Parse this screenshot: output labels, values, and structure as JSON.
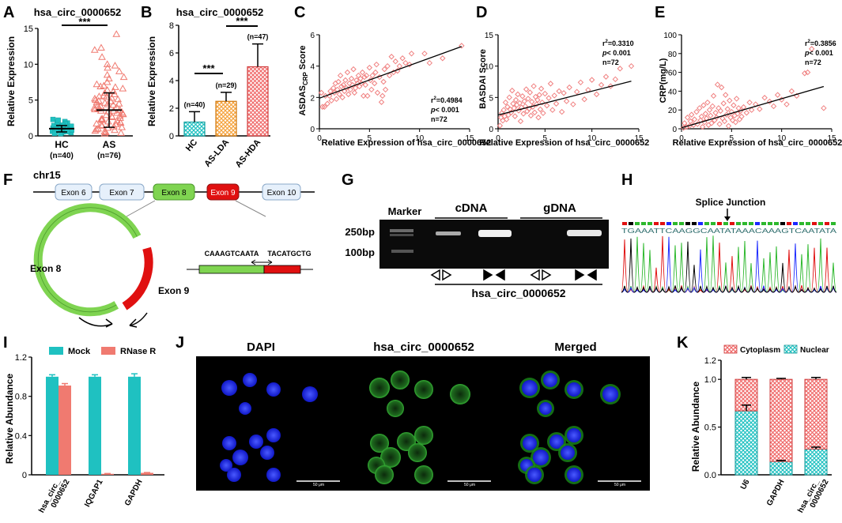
{
  "panels": {
    "A": "A",
    "B": "B",
    "C": "C",
    "D": "D",
    "E": "E",
    "F": "F",
    "G": "G",
    "H": "H",
    "I": "I",
    "J": "J",
    "K": "K"
  },
  "colors": {
    "teal": "#1fc1c1",
    "salmon": "#f07a70",
    "pink_point": "#f08080",
    "orange": "#f5a23c",
    "green_exon": "#7fd451",
    "red_exon": "#e01010",
    "blue_dapi": "#1a28ff",
    "green_fitc": "#2db82d"
  },
  "panel_a": {
    "title": "hsa_circ_0000652",
    "ylabel": "Relative Expression",
    "sig": "***",
    "groups": [
      "HC",
      "AS"
    ],
    "ns": [
      "(n=40)",
      "(n=76)"
    ]
  },
  "panel_b": {
    "title": "hsa_circ_0000652",
    "ylabel": "Relative Expression",
    "sig1": "***",
    "sig2": "***",
    "groups": [
      "HC",
      "AS-LDA",
      "AS-HDA"
    ],
    "ns": [
      "(n=40)",
      "(n=29)",
      "(n=47)"
    ]
  },
  "panel_c": {
    "ylabel_main": "ASDAS",
    "ylabel_sub": "CRP",
    "ylabel_end": " Score",
    "xlabel": "Relative Expression of hsa_circ_0000652",
    "r2_prefix": "r",
    "r2_sup": "2",
    "r2_value": "=0.4984",
    "p_prefix": "p",
    "p_value": "< 0.001",
    "n": "n=72"
  },
  "panel_d": {
    "ylabel": "BASDAI Score",
    "xlabel": "Relative Expression of  hsa_circ_0000652",
    "r2_prefix": "r",
    "r2_sup": "2",
    "r2_value": "=0.3310",
    "p_prefix": "p",
    "p_value": "< 0.001",
    "n": "n=72"
  },
  "panel_e": {
    "ylabel": "CRP(mg/L)",
    "xlabel": "Relative Expression of hsa_circ_0000652",
    "r2_prefix": "r",
    "r2_sup": "2",
    "r2_value": "=0.3856",
    "p_prefix": "p",
    "p_value": "< 0.001",
    "n": "n=72"
  },
  "panel_f": {
    "chrom": "chr15",
    "exons": [
      "Exon 6",
      "Exon 7",
      "Exon 8",
      "Exon 9",
      "Exon 10"
    ],
    "circle_exon_left": "Exon 8",
    "circle_exon_right": "Exon 9",
    "junction_left_seq": "CAAAGTCAATA",
    "junction_right_seq": "TACATGCTG"
  },
  "panel_g": {
    "marker": "Marker",
    "cdna": "cDNA",
    "gdna": "gDNA",
    "bp250": "250bp",
    "bp100": "100bp",
    "gene": "hsa_circ_0000652"
  },
  "panel_h": {
    "label": "Splice Junction",
    "sequence": "TGAAATTCAAGGCAATATAAACAAAGTCAATATA"
  },
  "panel_i": {
    "ylabel": "Relative Abundance",
    "legend": [
      "Mock",
      "RNase R"
    ],
    "xlabels": [
      "hsa_circ_\n0000652",
      "IQGAP1",
      "GAPDH"
    ]
  },
  "panel_j": {
    "headers": [
      "DAPI",
      "hsa_circ_0000652",
      "Merged"
    ],
    "scale": "50 μm"
  },
  "panel_k": {
    "ylabel": "Relative Abundance",
    "legend": [
      "Cytoplasm",
      "Nuclear"
    ],
    "xlabels": [
      "U6",
      "GAPDH",
      "hsa_circ_\n0000652"
    ]
  },
  "chart_data": [
    {
      "type": "scatter",
      "panel": "A",
      "title": "hsa_circ_0000652",
      "xlabel": "",
      "ylabel": "Relative Expression",
      "ylim": [
        0,
        15
      ],
      "yticks": [
        0,
        5,
        10,
        15
      ],
      "categories": [
        "HC",
        "AS"
      ],
      "series": [
        {
          "name": "HC",
          "mean": 1.0,
          "sd": 0.45,
          "points": [
            0.4,
            0.55,
            0.7,
            0.8,
            0.9,
            1.0,
            1.1,
            1.2,
            1.3,
            1.4,
            1.6,
            1.8,
            2.0,
            2.3,
            0.6,
            0.75,
            0.95,
            1.15,
            1.05,
            0.85,
            0.5,
            0.65,
            1.25,
            1.35,
            1.45,
            0.3,
            0.45,
            0.9,
            1.0,
            1.2,
            1.7,
            1.9,
            0.7,
            0.8,
            1.1,
            0.95,
            1.5,
            2.2,
            0.35,
            0.6
          ]
        },
        {
          "name": "AS",
          "mean": 3.6,
          "sd": 2.4,
          "points": [
            0.3,
            0.6,
            0.9,
            1.2,
            1.5,
            1.8,
            2.0,
            2.3,
            2.6,
            2.9,
            3.2,
            3.5,
            3.8,
            4.1,
            4.4,
            4.7,
            5.0,
            5.4,
            5.8,
            6.2,
            6.6,
            7.0,
            7.5,
            8.0,
            8.5,
            9.0,
            9.5,
            10.0,
            11.0,
            12.3,
            14.2,
            1.0,
            1.4,
            2.1,
            2.8,
            3.0,
            3.3,
            3.6,
            4.0,
            4.3,
            4.8,
            5.2,
            5.6,
            6.0,
            6.9,
            0.5,
            0.8,
            1.6,
            2.4,
            3.1,
            3.9,
            4.6,
            5.3,
            6.4,
            7.2,
            8.2,
            1.1,
            1.9,
            2.7,
            3.4,
            4.2,
            5.1,
            0.4,
            2.2,
            3.7,
            4.9,
            6.8,
            9.8,
            1.3,
            2.5,
            3.5,
            4.5,
            5.5,
            0.7,
            1.7,
            12.0
          ]
        }
      ],
      "sig": "***"
    },
    {
      "type": "bar",
      "panel": "B",
      "title": "hsa_circ_0000652",
      "xlabel": "",
      "ylabel": "Relative Expression",
      "ylim": [
        0,
        8
      ],
      "yticks": [
        0,
        2,
        4,
        6,
        8
      ],
      "categories": [
        "HC",
        "AS-LDA",
        "AS-HDA"
      ],
      "values": [
        1.0,
        2.5,
        5.0
      ],
      "errors": [
        0.75,
        0.65,
        1.65
      ],
      "ns": [
        "(n=40)",
        "(n=29)",
        "(n=47)"
      ]
    },
    {
      "type": "scatter",
      "panel": "C",
      "xlabel": "Relative Expression of hsa_circ_0000652",
      "ylabel": "ASDASCRP Score",
      "xlim": [
        0,
        15
      ],
      "ylim": [
        0,
        6
      ],
      "xticks": [
        0,
        5,
        10,
        15
      ],
      "yticks": [
        0,
        2,
        4,
        6
      ],
      "fit": [
        [
          0,
          1.95
        ],
        [
          14.2,
          5.25
        ]
      ],
      "r2": 0.4984,
      "n": 72,
      "points": [
        [
          0.2,
          2.3
        ],
        [
          0.3,
          1.4
        ],
        [
          0.5,
          1.4
        ],
        [
          0.6,
          2.1
        ],
        [
          0.8,
          1.6
        ],
        [
          1,
          2.1
        ],
        [
          1.1,
          2.4
        ],
        [
          1.2,
          1.8
        ],
        [
          1.4,
          2.6
        ],
        [
          1.5,
          2.3
        ],
        [
          1.6,
          2.9
        ],
        [
          1.7,
          1.9
        ],
        [
          1.8,
          2.5
        ],
        [
          1.9,
          3.0
        ],
        [
          2.0,
          2.2
        ],
        [
          2.1,
          3.4
        ],
        [
          2.2,
          2.7
        ],
        [
          2.3,
          2.0
        ],
        [
          2.4,
          2.8
        ],
        [
          2.5,
          2.4
        ],
        [
          2.6,
          3.1
        ],
        [
          2.7,
          2.6
        ],
        [
          2.8,
          3.6
        ],
        [
          2.9,
          2.2
        ],
        [
          3.0,
          2.9
        ],
        [
          3.1,
          2.5
        ],
        [
          3.2,
          3.2
        ],
        [
          3.3,
          2.8
        ],
        [
          3.4,
          3.8
        ],
        [
          3.5,
          2.3
        ],
        [
          3.6,
          2.6
        ],
        [
          3.7,
          3.1
        ],
        [
          3.8,
          2.9
        ],
        [
          3.9,
          3.4
        ],
        [
          4.0,
          2.7
        ],
        [
          4.1,
          3.2
        ],
        [
          4.2,
          2.9
        ],
        [
          4.3,
          3.6
        ],
        [
          4.4,
          2.1
        ],
        [
          4.5,
          3.3
        ],
        [
          4.6,
          2.8
        ],
        [
          4.7,
          3.4
        ],
        [
          4.8,
          2.1
        ],
        [
          5.0,
          3.9
        ],
        [
          5.1,
          3.1
        ],
        [
          5.2,
          2.5
        ],
        [
          5.3,
          3.4
        ],
        [
          5.5,
          2.9
        ],
        [
          5.6,
          3.6
        ],
        [
          5.7,
          4.1
        ],
        [
          5.8,
          2.3
        ],
        [
          6.0,
          3.3
        ],
        [
          6.2,
          1.7
        ],
        [
          6.3,
          2.1
        ],
        [
          6.4,
          3.0
        ],
        [
          6.5,
          3.8
        ],
        [
          6.6,
          2.5
        ],
        [
          6.8,
          4.0
        ],
        [
          7.0,
          3.4
        ],
        [
          7.2,
          4.6
        ],
        [
          7.4,
          3.6
        ],
        [
          7.6,
          4.3
        ],
        [
          7.8,
          3.7
        ],
        [
          8.0,
          4.0
        ],
        [
          8.3,
          4.5
        ],
        [
          8.6,
          4.2
        ],
        [
          9.0,
          4.1
        ],
        [
          9.2,
          4.8
        ],
        [
          10.5,
          4.8
        ],
        [
          11.0,
          4.2
        ],
        [
          12.3,
          4.5
        ],
        [
          14.2,
          5.3
        ]
      ]
    },
    {
      "type": "scatter",
      "panel": "D",
      "xlabel": "Relative Expression of  hsa_circ_0000652",
      "ylabel": "BASDAI Score",
      "xlim": [
        0,
        15
      ],
      "ylim": [
        0,
        15
      ],
      "xticks": [
        0,
        5,
        10,
        15
      ],
      "yticks": [
        0,
        5,
        10,
        15
      ],
      "fit": [
        [
          0,
          2.2
        ],
        [
          14.2,
          7.6
        ]
      ],
      "r2": 0.331,
      "n": 72,
      "points": [
        [
          0.2,
          0.5
        ],
        [
          0.3,
          1.8
        ],
        [
          0.4,
          2.5
        ],
        [
          0.5,
          1.3
        ],
        [
          0.6,
          3.0
        ],
        [
          0.7,
          2.0
        ],
        [
          0.8,
          4.2
        ],
        [
          0.9,
          1.5
        ],
        [
          1.0,
          3.5
        ],
        [
          1.1,
          2.2
        ],
        [
          1.2,
          5.0
        ],
        [
          1.3,
          3.1
        ],
        [
          1.4,
          2.6
        ],
        [
          1.5,
          6.1
        ],
        [
          1.6,
          4.0
        ],
        [
          1.7,
          3.3
        ],
        [
          1.8,
          2.0
        ],
        [
          1.9,
          4.6
        ],
        [
          2.0,
          3.8
        ],
        [
          2.1,
          5.5
        ],
        [
          2.2,
          2.9
        ],
        [
          2.3,
          4.1
        ],
        [
          2.4,
          1.2
        ],
        [
          2.5,
          3.4
        ],
        [
          2.6,
          5.2
        ],
        [
          2.7,
          2.4
        ],
        [
          2.8,
          4.4
        ],
        [
          2.9,
          3.6
        ],
        [
          3.0,
          6.3
        ],
        [
          3.1,
          2.8
        ],
        [
          3.2,
          4.8
        ],
        [
          3.3,
          3.2
        ],
        [
          3.4,
          5.8
        ],
        [
          3.5,
          2.1
        ],
        [
          3.6,
          4.3
        ],
        [
          3.7,
          3.5
        ],
        [
          3.8,
          6.8
        ],
        [
          3.9,
          2.6
        ],
        [
          4.0,
          5.1
        ],
        [
          4.1,
          3.9
        ],
        [
          4.2,
          4.6
        ],
        [
          4.3,
          1.8
        ],
        [
          4.4,
          5.4
        ],
        [
          4.5,
          3.1
        ],
        [
          4.6,
          6.4
        ],
        [
          4.7,
          4.2
        ],
        [
          4.8,
          2.5
        ],
        [
          5.0,
          5.6
        ],
        [
          5.2,
          3.7
        ],
        [
          5.4,
          4.9
        ],
        [
          5.6,
          7.2
        ],
        [
          5.8,
          3.0
        ],
        [
          6.0,
          5.3
        ],
        [
          6.2,
          4.0
        ],
        [
          6.5,
          6.0
        ],
        [
          6.8,
          2.7
        ],
        [
          7.0,
          5.7
        ],
        [
          7.3,
          4.4
        ],
        [
          7.6,
          6.6
        ],
        [
          8.0,
          3.9
        ],
        [
          8.4,
          5.9
        ],
        [
          8.8,
          7.4
        ],
        [
          9.2,
          4.7
        ],
        [
          9.6,
          6.2
        ],
        [
          10.0,
          7.8
        ],
        [
          10.5,
          5.5
        ],
        [
          11.0,
          7.0
        ],
        [
          11.5,
          8.3
        ],
        [
          12.0,
          6.8
        ],
        [
          12.5,
          7.9
        ],
        [
          13.0,
          9.6
        ],
        [
          14.2,
          10.0
        ]
      ]
    },
    {
      "type": "scatter",
      "panel": "E",
      "xlabel": "Relative Expression of hsa_circ_0000652",
      "ylabel": "CRP(mg/L)",
      "xlim": [
        0,
        15
      ],
      "ylim": [
        0,
        100
      ],
      "xticks": [
        0,
        5,
        10,
        15
      ],
      "yticks": [
        0,
        20,
        40,
        60,
        80,
        100
      ],
      "fit": [
        [
          0,
          1.0
        ],
        [
          14.2,
          45
        ]
      ],
      "r2": 0.3856,
      "n": 72,
      "points": [
        [
          0.2,
          1
        ],
        [
          0.3,
          6
        ],
        [
          0.5,
          2
        ],
        [
          0.6,
          12
        ],
        [
          0.8,
          3
        ],
        [
          0.9,
          8
        ],
        [
          1.0,
          15
        ],
        [
          1.2,
          4
        ],
        [
          1.3,
          10
        ],
        [
          1.5,
          18
        ],
        [
          1.6,
          5
        ],
        [
          1.8,
          22
        ],
        [
          1.9,
          9
        ],
        [
          2.0,
          13
        ],
        [
          2.1,
          2
        ],
        [
          2.2,
          25
        ],
        [
          2.3,
          7
        ],
        [
          2.4,
          16
        ],
        [
          2.5,
          11
        ],
        [
          2.6,
          28
        ],
        [
          2.7,
          4
        ],
        [
          2.8,
          20
        ],
        [
          2.9,
          14
        ],
        [
          3.0,
          6
        ],
        [
          3.1,
          24
        ],
        [
          3.2,
          35
        ],
        [
          3.3,
          9
        ],
        [
          3.4,
          17
        ],
        [
          3.5,
          12
        ],
        [
          3.6,
          47
        ],
        [
          3.7,
          22
        ],
        [
          3.8,
          5
        ],
        [
          3.9,
          19
        ],
        [
          4.0,
          44
        ],
        [
          4.1,
          11
        ],
        [
          4.2,
          27
        ],
        [
          4.3,
          8
        ],
        [
          4.4,
          36
        ],
        [
          4.5,
          15
        ],
        [
          4.6,
          21
        ],
        [
          4.7,
          3
        ],
        [
          4.8,
          30
        ],
        [
          4.9,
          12
        ],
        [
          5.0,
          18
        ],
        [
          5.1,
          9
        ],
        [
          5.2,
          25
        ],
        [
          5.3,
          14
        ],
        [
          5.4,
          7
        ],
        [
          5.5,
          32
        ],
        [
          5.6,
          16
        ],
        [
          5.7,
          22
        ],
        [
          5.8,
          10
        ],
        [
          5.9,
          19
        ],
        [
          6.0,
          13
        ],
        [
          6.2,
          23
        ],
        [
          6.5,
          17
        ],
        [
          6.8,
          28
        ],
        [
          7.0,
          20
        ],
        [
          7.4,
          26
        ],
        [
          7.8,
          21
        ],
        [
          8.3,
          33
        ],
        [
          8.8,
          29
        ],
        [
          9.2,
          24
        ],
        [
          9.6,
          36
        ],
        [
          10.0,
          31
        ],
        [
          10.5,
          26
        ],
        [
          11.0,
          40
        ],
        [
          11.5,
          35
        ],
        [
          12.3,
          59
        ],
        [
          12.6,
          60
        ],
        [
          13.0,
          85
        ],
        [
          14.2,
          22
        ]
      ]
    },
    {
      "type": "bar",
      "panel": "I",
      "xlabel": "",
      "ylabel": "Relative Abundance",
      "ylim": [
        0,
        1.2
      ],
      "yticks": [
        0,
        0.4,
        0.8,
        1.2
      ],
      "categories": [
        "hsa_circ_0000652",
        "IQGAP1",
        "GAPDH"
      ],
      "series": [
        {
          "name": "Mock",
          "values": [
            1.0,
            1.0,
            1.0
          ],
          "errors": [
            0.02,
            0.02,
            0.03
          ]
        },
        {
          "name": "RNase R",
          "values": [
            0.91,
            0.01,
            0.02
          ],
          "errors": [
            0.02,
            0.003,
            0.003
          ]
        }
      ]
    },
    {
      "type": "bar",
      "panel": "K",
      "stacked": true,
      "xlabel": "",
      "ylabel": "Relative Abundance",
      "ylim": [
        0,
        1.2
      ],
      "yticks": [
        0,
        0.5,
        1.0
      ],
      "categories": [
        "U6",
        "GAPDH",
        "hsa_circ_0000652"
      ],
      "series": [
        {
          "name": "Nuclear",
          "values": [
            0.67,
            0.14,
            0.27
          ],
          "errors": [
            0.06,
            0.01,
            0.02
          ]
        },
        {
          "name": "Cytoplasm",
          "values": [
            0.33,
            0.86,
            0.73
          ],
          "errors": [
            0.02,
            0.01,
            0.02
          ]
        }
      ]
    }
  ]
}
